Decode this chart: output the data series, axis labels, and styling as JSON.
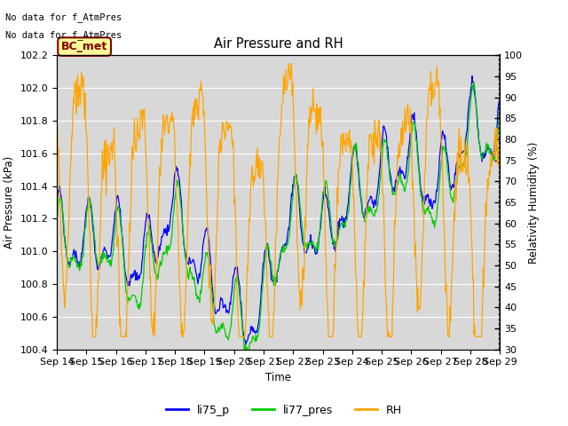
{
  "title": "Air Pressure and RH",
  "xlabel": "Time",
  "ylabel_left": "Air Pressure (kPa)",
  "ylabel_right": "Relativity Humidity (%)",
  "ylim_left": [
    100.4,
    102.2
  ],
  "ylim_right": [
    30,
    100
  ],
  "yticks_left": [
    100.4,
    100.6,
    100.8,
    101.0,
    101.2,
    101.4,
    101.6,
    101.8,
    102.0,
    102.2
  ],
  "yticks_right": [
    30,
    35,
    40,
    45,
    50,
    55,
    60,
    65,
    70,
    75,
    80,
    85,
    90,
    95,
    100
  ],
  "xtick_labels": [
    "Sep 14",
    "Sep 15",
    "Sep 16",
    "Sep 17",
    "Sep 18",
    "Sep 19",
    "Sep 20",
    "Sep 21",
    "Sep 22",
    "Sep 23",
    "Sep 24",
    "Sep 25",
    "Sep 26",
    "Sep 27",
    "Sep 28",
    "Sep 29"
  ],
  "text_no_data_1": "No data for f_AtmPres",
  "text_no_data_2": "No data for f̲AtmPres",
  "bc_met_label": "BC_met",
  "color_li75": "#0000ff",
  "color_li77": "#00cc00",
  "color_rh": "#ffa500",
  "color_bc_met_bg": "#ffff99",
  "color_bc_met_border": "#800000",
  "color_bc_met_text": "#800000",
  "bg_color": "#d8d8d8",
  "legend_labels": [
    "li75_p",
    "li77_pres",
    "RH"
  ],
  "grid_color": "#ffffff",
  "n_days": 15,
  "n_pts": 720
}
